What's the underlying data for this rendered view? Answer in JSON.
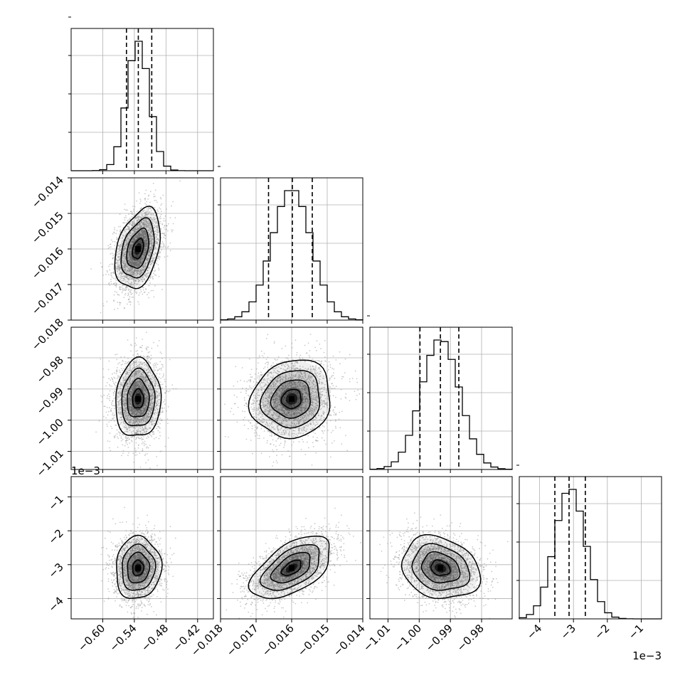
{
  "chart_data": {
    "type": "corner",
    "grid": true,
    "parameters": [
      {
        "range": [
          -0.66,
          -0.39
        ],
        "ticks": [
          -0.6,
          -0.54,
          -0.48,
          -0.42
        ],
        "tick_labels": [
          "−0.60",
          "−0.54",
          "−0.48",
          "−0.42"
        ],
        "quantiles": [
          -0.555,
          -0.5325,
          -0.507
        ],
        "mean": -0.533,
        "sd": 0.021
      },
      {
        "range": [
          -0.018,
          -0.014
        ],
        "ticks": [
          -0.018,
          -0.017,
          -0.016,
          -0.015,
          -0.014
        ],
        "tick_labels": [
          "−0.018",
          "−0.017",
          "−0.016",
          "−0.015",
          "−0.014"
        ],
        "quantiles": [
          -0.01665,
          -0.01598,
          -0.01542
        ],
        "mean": -0.016,
        "sd": 0.00055
      },
      {
        "range": [
          -1.0158,
          -0.9702
        ],
        "ticks": [
          -1.01,
          -1.0,
          -0.99,
          -0.98
        ],
        "tick_labels": [
          "−1.01",
          "−1.00",
          "−0.99",
          "−0.98"
        ],
        "quantiles": [
          -0.99975,
          -0.9932,
          -0.9873
        ],
        "mean": -0.9932,
        "sd": 0.0061
      },
      {
        "range": [
          -0.0046,
          -0.0004
        ],
        "ticks": [
          -0.004,
          -0.003,
          -0.002,
          -0.001
        ],
        "tick_labels": [
          "−4",
          "−3",
          "−2",
          "−1"
        ],
        "offset_label": "1e−3",
        "quantiles": [
          -0.00355,
          -0.00313,
          -0.00265
        ],
        "mean": -0.0031,
        "sd": 0.00045
      }
    ],
    "correlations": [
      {
        "i": 1,
        "j": 0,
        "rho": 0.35
      },
      {
        "i": 2,
        "j": 0,
        "rho": 0.05
      },
      {
        "i": 2,
        "j": 1,
        "rho": 0.1
      },
      {
        "i": 3,
        "j": 0,
        "rho": 0.05
      },
      {
        "i": 3,
        "j": 1,
        "rho": 0.55
      },
      {
        "i": 3,
        "j": 2,
        "rho": -0.2
      }
    ],
    "colors": {
      "line": "#000000",
      "grid": "#b0b0b0",
      "scatter": "#a0a0a0",
      "density": "#000000"
    }
  }
}
